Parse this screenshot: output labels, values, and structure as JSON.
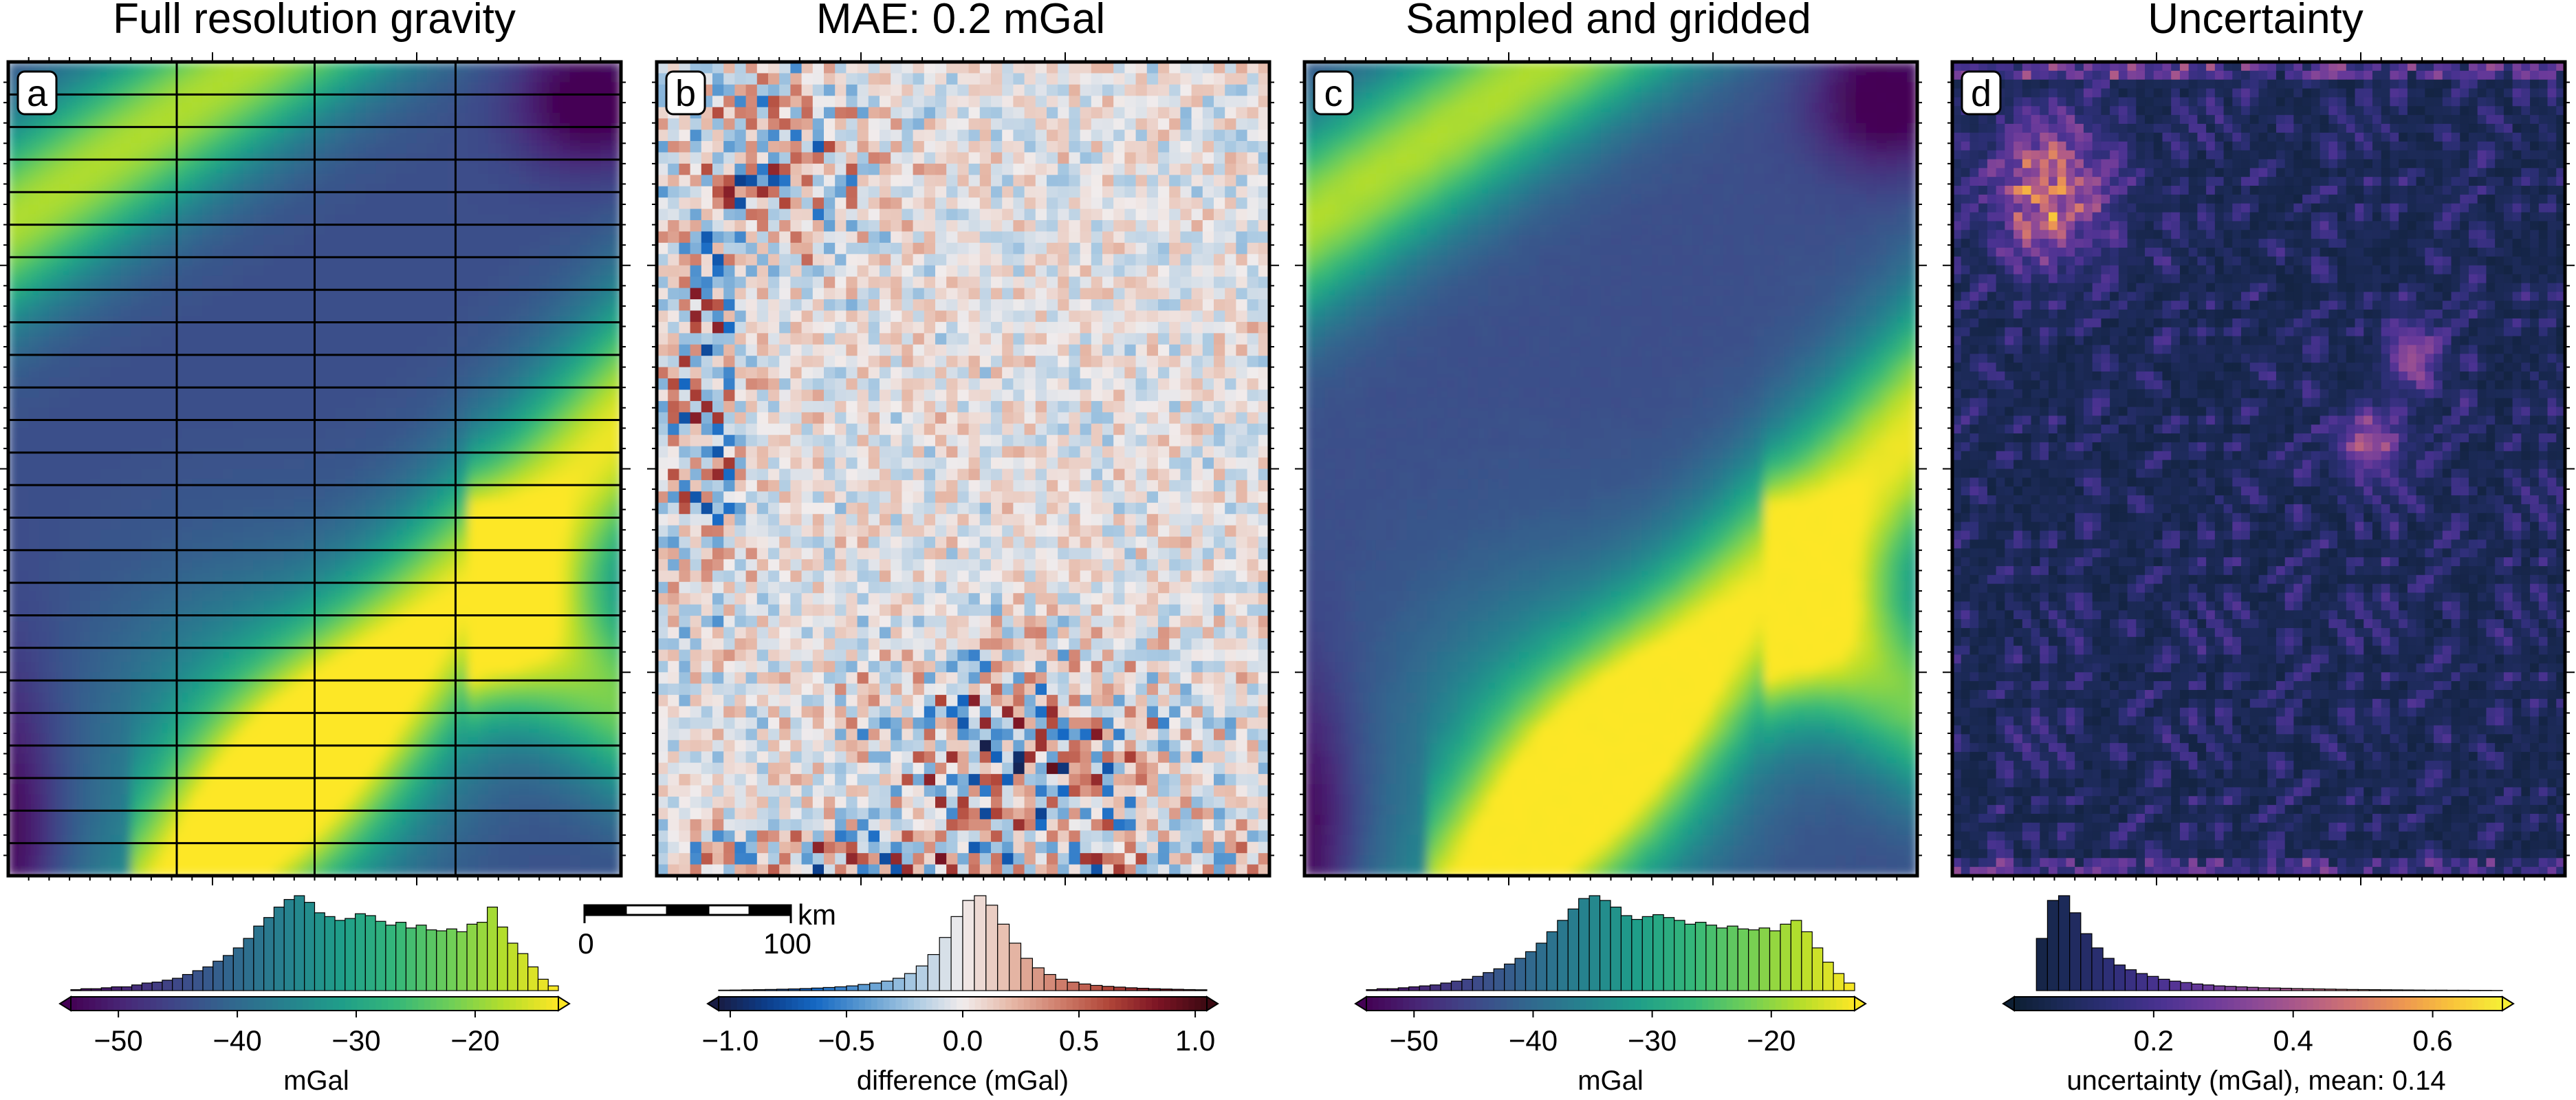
{
  "panels": [
    {
      "id": "a",
      "label": "a",
      "title": "Full resolution gravity",
      "field": "gravity",
      "cmap": "viridis",
      "show_grid": true,
      "smooth": true,
      "colorbar": {
        "cmap": "viridis",
        "range": [
          -54,
          -13
        ],
        "ticks": [
          "−50",
          "−40",
          "−30",
          "−20"
        ],
        "tick_values": [
          -50,
          -40,
          -30,
          -20
        ],
        "label": "mGal",
        "hist": [
          0.01,
          0.02,
          0.02,
          0.03,
          0.04,
          0.04,
          0.06,
          0.08,
          0.09,
          0.11,
          0.13,
          0.17,
          0.21,
          0.25,
          0.31,
          0.37,
          0.45,
          0.55,
          0.68,
          0.77,
          0.88,
          0.96,
          1.0,
          0.93,
          0.82,
          0.78,
          0.74,
          0.76,
          0.81,
          0.79,
          0.73,
          0.69,
          0.72,
          0.66,
          0.69,
          0.64,
          0.63,
          0.65,
          0.62,
          0.7,
          0.72,
          0.88,
          0.67,
          0.5,
          0.39,
          0.25,
          0.12,
          0.05
        ]
      }
    },
    {
      "id": "b",
      "label": "b",
      "title": "MAE: 0.2 mGal",
      "field": "difference",
      "cmap": "balance",
      "show_grid": false,
      "smooth": false,
      "colorbar": {
        "cmap": "balance",
        "range": [
          -1.05,
          1.05
        ],
        "ticks": [
          "−1.0",
          "−0.5",
          "0.0",
          "0.5",
          "1.0"
        ],
        "tick_values": [
          -1.0,
          -0.5,
          0.0,
          0.5,
          1.0
        ],
        "label": "difference (mGal)",
        "hist": [
          0.005,
          0.006,
          0.008,
          0.01,
          0.012,
          0.015,
          0.018,
          0.022,
          0.027,
          0.033,
          0.04,
          0.05,
          0.065,
          0.08,
          0.1,
          0.13,
          0.18,
          0.26,
          0.38,
          0.56,
          0.78,
          0.95,
          1.0,
          0.9,
          0.7,
          0.5,
          0.34,
          0.24,
          0.17,
          0.12,
          0.09,
          0.07,
          0.055,
          0.045,
          0.037,
          0.03,
          0.025,
          0.02,
          0.017,
          0.014,
          0.011,
          0.009
        ]
      },
      "scalebar": {
        "label": "km",
        "ticks": [
          "0",
          "100"
        ]
      }
    },
    {
      "id": "c",
      "label": "c",
      "title": "Sampled and gridded",
      "field": "gridded",
      "cmap": "viridis",
      "show_grid": false,
      "smooth": true,
      "colorbar": {
        "cmap": "viridis",
        "range": [
          -54,
          -13
        ],
        "ticks": [
          "−50",
          "−40",
          "−30",
          "−20"
        ],
        "tick_values": [
          -50,
          -40,
          -30,
          -20
        ],
        "label": "mGal",
        "hist": [
          0.01,
          0.02,
          0.02,
          0.03,
          0.04,
          0.05,
          0.06,
          0.08,
          0.1,
          0.12,
          0.15,
          0.19,
          0.23,
          0.28,
          0.34,
          0.41,
          0.5,
          0.62,
          0.74,
          0.86,
          0.97,
          1.0,
          0.95,
          0.88,
          0.79,
          0.75,
          0.78,
          0.8,
          0.77,
          0.74,
          0.7,
          0.72,
          0.69,
          0.66,
          0.68,
          0.65,
          0.64,
          0.66,
          0.63,
          0.7,
          0.74,
          0.62,
          0.45,
          0.3,
          0.18,
          0.08
        ]
      }
    },
    {
      "id": "d",
      "label": "d",
      "title": "Uncertainty",
      "field": "uncertainty",
      "cmap": "plasma",
      "show_grid": false,
      "smooth": false,
      "colorbar": {
        "cmap": "plasma",
        "range": [
          0.0,
          0.7
        ],
        "ticks": [
          "0.2",
          "0.4",
          "0.6"
        ],
        "tick_values": [
          0.2,
          0.4,
          0.6
        ],
        "label": "uncertainty (mGal), mean: 0.14",
        "hist": [
          0.0,
          0.0,
          0.55,
          0.95,
          1.0,
          0.82,
          0.6,
          0.45,
          0.34,
          0.27,
          0.22,
          0.18,
          0.15,
          0.12,
          0.1,
          0.085,
          0.07,
          0.06,
          0.05,
          0.045,
          0.04,
          0.035,
          0.03,
          0.028,
          0.025,
          0.022,
          0.02,
          0.018,
          0.016,
          0.014,
          0.012,
          0.011,
          0.01,
          0.009,
          0.008,
          0.007,
          0.006,
          0.005,
          0.005,
          0.004,
          0.004,
          0.003,
          0.003,
          0.002
        ]
      }
    }
  ]
}
